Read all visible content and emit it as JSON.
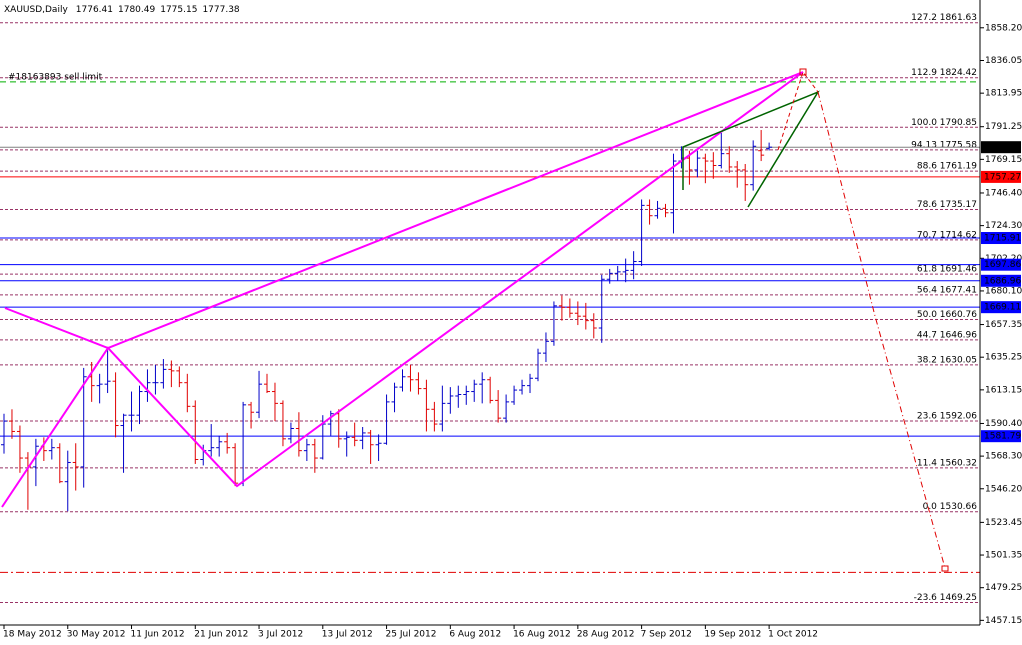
{
  "chart_data": {
    "type": "ohlc",
    "title": "XAUUSD,Daily",
    "header_values": [
      1776.41,
      1780.49,
      1775.15,
      1777.38
    ],
    "categories": [
      "18 May 2012",
      null,
      null,
      null,
      null,
      null,
      null,
      null,
      "30 May 2012",
      null,
      null,
      null,
      null,
      null,
      null,
      null,
      "11 Jun 2012",
      null,
      null,
      null,
      null,
      null,
      null,
      null,
      "21 Jun 2012",
      null,
      null,
      null,
      null,
      null,
      null,
      null,
      "3 Jul 2012",
      null,
      null,
      null,
      null,
      null,
      null,
      null,
      "13 Jul 2012",
      null,
      null,
      null,
      null,
      null,
      null,
      null,
      "25 Jul 2012",
      null,
      null,
      null,
      null,
      null,
      null,
      null,
      "6 Aug 2012",
      null,
      null,
      null,
      null,
      null,
      null,
      null,
      "16 Aug 2012",
      null,
      null,
      null,
      null,
      null,
      null,
      null,
      "28 Aug 2012",
      null,
      null,
      null,
      null,
      null,
      null,
      null,
      "7 Sep 2012",
      null,
      null,
      null,
      null,
      null,
      null,
      null,
      "19 Sep 2012",
      null,
      null,
      null,
      null,
      null,
      null,
      null,
      "1 Oct 2012"
    ],
    "open": [
      1576,
      1592,
      1585,
      1567,
      1561,
      1575,
      1572,
      1574,
      1551,
      1564,
      1561,
      1622,
      1616,
      1617,
      1619,
      1589,
      1596,
      1596,
      1612,
      1618,
      1618,
      1627,
      1626,
      1618,
      1602,
      1566,
      1572,
      1574,
      1578,
      1574,
      1550,
      1603,
      1598,
      1617,
      1612,
      1604,
      1580,
      1587,
      1572,
      1576,
      1567,
      1590,
      1597,
      1580,
      1581,
      1579,
      1584,
      1576,
      1577,
      1605,
      1615,
      1622,
      1620,
      1614,
      1600,
      1590,
      1604,
      1609,
      1610,
      1612,
      1617,
      1620,
      1606,
      1594,
      1605,
      1613,
      1616,
      1621,
      1638,
      1646,
      1670,
      1669,
      1665,
      1663,
      1660,
      1655,
      1688,
      1692,
      1693,
      1694,
      1700,
      1738,
      1731,
      1736,
      1733,
      1768,
      1770,
      1762,
      1770,
      1768,
      1765,
      1773,
      1764,
      1762,
      1752,
      1775,
      1776.41
    ],
    "high": [
      1597,
      1600,
      1589,
      1571,
      1580,
      1581,
      1580,
      1577,
      1572,
      1577,
      1628,
      1632,
      1624,
      1640,
      1625,
      1597,
      1612,
      1616,
      1627,
      1630,
      1634,
      1633,
      1629,
      1624,
      1606,
      1576,
      1590,
      1582,
      1584,
      1577,
      1605,
      1605,
      1626,
      1624,
      1618,
      1606,
      1591,
      1598,
      1580,
      1580,
      1596,
      1599,
      1600,
      1585,
      1591,
      1588,
      1586,
      1583,
      1610,
      1618,
      1627,
      1630,
      1625,
      1620,
      1605,
      1616,
      1615,
      1616,
      1616,
      1620,
      1625,
      1622,
      1613,
      1610,
      1616,
      1620,
      1624,
      1641,
      1652,
      1673,
      1677,
      1675,
      1673,
      1672,
      1665,
      1691,
      1695,
      1697,
      1702,
      1707,
      1742,
      1742,
      1741,
      1739,
      1773,
      1778,
      1775,
      1775,
      1773,
      1774,
      1787,
      1778,
      1768,
      1766,
      1782,
      1789,
      1780.49
    ],
    "low": [
      1570,
      1580,
      1557,
      1532,
      1548,
      1565,
      1566,
      1550,
      1531,
      1545,
      1547,
      1605,
      1604,
      1611,
      1581,
      1557,
      1585,
      1590,
      1605,
      1610,
      1614,
      1615,
      1615,
      1598,
      1563,
      1562,
      1568,
      1568,
      1570,
      1548,
      1548,
      1587,
      1594,
      1611,
      1592,
      1575,
      1577,
      1568,
      1565,
      1557,
      1566,
      1582,
      1574,
      1568,
      1575,
      1573,
      1563,
      1565,
      1576,
      1598,
      1612,
      1612,
      1610,
      1585,
      1585,
      1585,
      1597,
      1601,
      1603,
      1605,
      1604,
      1604,
      1591,
      1591,
      1603,
      1610,
      1611,
      1619,
      1632,
      1643,
      1660,
      1662,
      1657,
      1654,
      1648,
      1645,
      1685,
      1687,
      1686,
      1688,
      1697,
      1725,
      1729,
      1730,
      1719,
      1763,
      1752,
      1757,
      1753,
      1756,
      1763,
      1760,
      1750,
      1741,
      1748,
      1768,
      1775.15
    ],
    "close": [
      1592,
      1585,
      1567,
      1561,
      1575,
      1572,
      1574,
      1551,
      1564,
      1561,
      1622,
      1616,
      1617,
      1619,
      1589,
      1596,
      1596,
      1612,
      1618,
      1618,
      1627,
      1626,
      1618,
      1602,
      1566,
      1572,
      1574,
      1578,
      1574,
      1550,
      1603,
      1598,
      1617,
      1612,
      1604,
      1580,
      1587,
      1572,
      1576,
      1567,
      1590,
      1597,
      1580,
      1581,
      1579,
      1584,
      1576,
      1577,
      1605,
      1615,
      1622,
      1620,
      1614,
      1600,
      1590,
      1604,
      1609,
      1610,
      1612,
      1617,
      1620,
      1606,
      1594,
      1605,
      1613,
      1616,
      1621,
      1638,
      1646,
      1670,
      1669,
      1665,
      1663,
      1660,
      1655,
      1688,
      1692,
      1693,
      1694,
      1700,
      1738,
      1731,
      1736,
      1733,
      1768,
      1770,
      1762,
      1770,
      1768,
      1765,
      1773,
      1764,
      1762,
      1752,
      1778,
      1772,
      1777.38
    ],
    "up_color": "#0000c8",
    "down_color": "#e00000",
    "ylim": [
      1454,
      1877
    ],
    "yticks": [
      {
        "value": 1858.2,
        "label": "1858.20"
      },
      1836.05,
      1813.95,
      1791.25,
      1769.15,
      {
        "value": 1746.4,
        "label": "1746.40"
      },
      {
        "value": 1724.3,
        "label": "1724.30"
      },
      {
        "value": 1702.2,
        "label": "1702.20"
      },
      {
        "value": 1680.1,
        "label": "1680.10"
      },
      1657.35,
      1635.25,
      1613.15,
      {
        "value": 1590.4,
        "label": "1590.40"
      },
      {
        "value": 1568.3,
        "label": "1568.30"
      },
      {
        "value": 1546.2,
        "label": "1546.20"
      },
      1523.45,
      1501.35,
      1479.25,
      1457.15
    ],
    "fib_levels": [
      {
        "value": 1861.63,
        "label": "127.2 1861.63"
      },
      {
        "value": 1824.42,
        "label": "112.9 1824.42"
      },
      {
        "value": 1790.85,
        "label": "100.0 1790.85"
      },
      {
        "value": 1775.58,
        "label": "94.13 1775.58"
      },
      {
        "value": 1761.19,
        "label": "88.6 1761.19"
      },
      {
        "value": 1735.17,
        "label": "78.6 1735.17"
      },
      {
        "value": 1714.62,
        "label": "70.7 1714.62"
      },
      {
        "value": 1691.46,
        "label": "61.8 1691.46"
      },
      {
        "value": 1677.41,
        "label": "56.4 1677.41"
      },
      {
        "value": 1660.76,
        "label": "50.0 1660.76"
      },
      {
        "value": 1646.96,
        "label": "44.7 1646.96"
      },
      {
        "value": 1630.05,
        "label": "38.2 1630.05"
      },
      {
        "value": 1592.06,
        "label": "23.6 1592.06"
      },
      {
        "value": 1560.32,
        "label": "11.4 1560.32"
      },
      {
        "value": 1530.66,
        "label": "0.0 1530.66"
      },
      {
        "value": 1469.25,
        "label": "-23.6 1469.25"
      }
    ],
    "fib_color": "#993366",
    "price_lines": [
      {
        "value": 1777.38,
        "color": "#000000"
      },
      {
        "value": 1757.27,
        "color": "#ff0000"
      },
      {
        "value": 1715.91,
        "color": "#0000ff"
      },
      {
        "value": 1697.86,
        "color": "#0000ff"
      },
      {
        "value": 1686.96,
        "color": "#0000ff"
      },
      {
        "value": 1669.11,
        "color": "#0000ff"
      },
      {
        "value": 1581.79,
        "color": "#0000ff"
      }
    ],
    "order_line": {
      "value": 1821.6,
      "label": "#18163893 sell limit",
      "color": "#00b000"
    },
    "target_line": {
      "value": 1489.6,
      "color": "#e00000"
    }
  }
}
